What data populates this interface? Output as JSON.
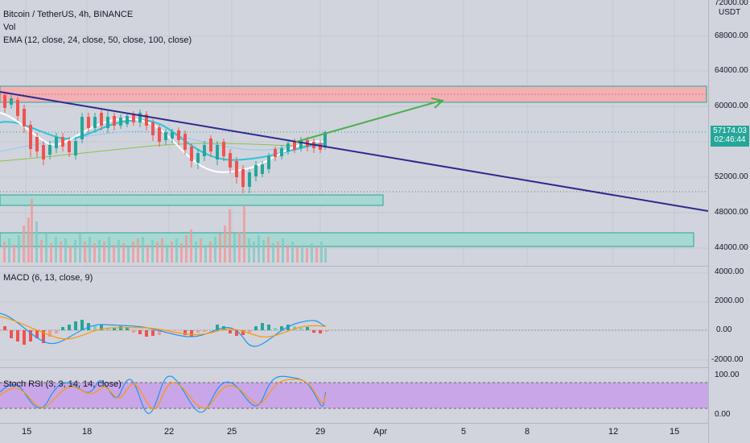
{
  "header": {
    "symbol": "Bitcoin / TetherUS, 4h, BINANCE",
    "vol_label": "Vol",
    "ema_label": "EMA (12, close, 24, close, 50, close, 100, close)",
    "currency": "USDT"
  },
  "price_axis": {
    "labels": [
      "72000.00",
      "68000.00",
      "64000.00",
      "60000.00",
      "52000.00",
      "48000.00",
      "44000.00"
    ],
    "current_price": "57174.03",
    "countdown": "02:46:44"
  },
  "macd": {
    "label": "MACD (6, 13, close, 9)",
    "axis": [
      "4000.00",
      "2000.00",
      "0.00",
      "-2000.00"
    ]
  },
  "stoch": {
    "label": "Stoch RSI (3, 3, 14, 14, close)",
    "axis": [
      "100.00",
      "0.00"
    ]
  },
  "time_axis": [
    "15",
    "18",
    "22",
    "25",
    "29",
    "Apr",
    "5",
    "8",
    "12",
    "15"
  ],
  "colors": {
    "up": "#26a69a",
    "down": "#ef5350",
    "trendline": "#2e2a8c",
    "projection": "#4caf50",
    "resistance_zone": "#f2b0b5",
    "rsi_band": "#c9a6e8"
  }
}
